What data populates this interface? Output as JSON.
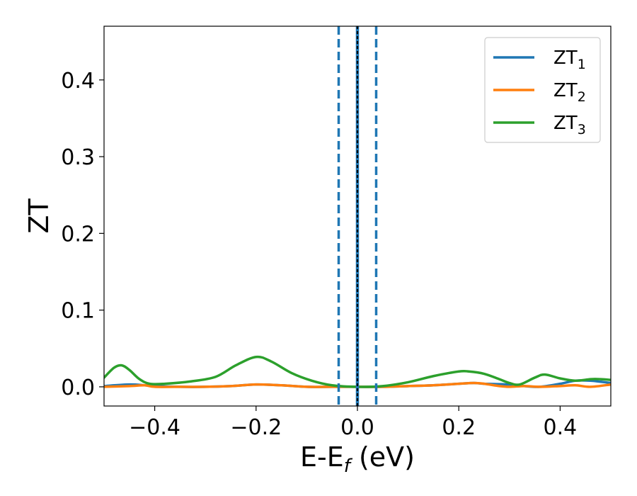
{
  "chart_data": {
    "type": "line",
    "xlabel": "E-E_f (eV)",
    "xlabel_main": "E-E",
    "xlabel_sub": "f",
    "xlabel_unit": " (eV)",
    "ylabel": "ZT",
    "xlim": [
      -0.5,
      0.5
    ],
    "ylim": [
      -0.025,
      0.47
    ],
    "xticks": [
      -0.4,
      -0.2,
      0.0,
      0.2,
      0.4
    ],
    "xtick_labels": [
      "−0.4",
      "−0.2",
      "0.0",
      "0.2",
      "0.4"
    ],
    "yticks": [
      0.0,
      0.1,
      0.2,
      0.3,
      0.4
    ],
    "ytick_labels": [
      "0.0",
      "0.1",
      "0.2",
      "0.3",
      "0.4"
    ],
    "grid": false,
    "legend_position": "top-right",
    "vlines": [
      {
        "x": -0.037,
        "style": "dashed",
        "color": "#1f77b4"
      },
      {
        "x": 0.0,
        "style": "solid",
        "color": "#1f77b4"
      },
      {
        "x": 0.0,
        "style": "dotted",
        "color": "#000000"
      },
      {
        "x": 0.037,
        "style": "dashed",
        "color": "#1f77b4"
      }
    ],
    "series": [
      {
        "name": "ZT",
        "sub": "1",
        "color": "#1f77b4",
        "x": [
          -0.5,
          -0.45,
          -0.42,
          -0.4,
          -0.35,
          -0.3,
          -0.25,
          -0.2,
          -0.15,
          -0.1,
          -0.05,
          0.0,
          0.05,
          0.1,
          0.15,
          0.2,
          0.23,
          0.25,
          0.3,
          0.33,
          0.36,
          0.4,
          0.43,
          0.46,
          0.5
        ],
        "y": [
          0.001,
          0.003,
          0.002,
          0.001,
          0.0,
          0.0,
          0.001,
          0.003,
          0.002,
          0.0,
          0.0,
          0.0,
          0.0,
          0.001,
          0.002,
          0.004,
          0.005,
          0.004,
          0.003,
          0.001,
          0.0,
          0.004,
          0.008,
          0.008,
          0.005
        ]
      },
      {
        "name": "ZT",
        "sub": "2",
        "color": "#ff7f0e",
        "x": [
          -0.5,
          -0.45,
          -0.42,
          -0.4,
          -0.35,
          -0.3,
          -0.25,
          -0.2,
          -0.15,
          -0.1,
          -0.05,
          0.0,
          0.05,
          0.1,
          0.15,
          0.2,
          0.23,
          0.25,
          0.28,
          0.3,
          0.33,
          0.36,
          0.4,
          0.43,
          0.46,
          0.5
        ],
        "y": [
          0.0,
          0.001,
          0.002,
          0.0,
          0.0,
          0.0,
          0.001,
          0.003,
          0.002,
          0.0,
          0.0,
          0.0,
          0.0,
          0.001,
          0.002,
          0.004,
          0.005,
          0.004,
          0.001,
          0.0,
          0.001,
          0.0,
          0.001,
          0.002,
          0.0,
          0.003
        ]
      },
      {
        "name": "ZT",
        "sub": "3",
        "color": "#2ca02c",
        "x": [
          -0.5,
          -0.48,
          -0.465,
          -0.45,
          -0.43,
          -0.41,
          -0.38,
          -0.33,
          -0.28,
          -0.24,
          -0.2,
          -0.17,
          -0.13,
          -0.09,
          -0.05,
          0.0,
          0.05,
          0.1,
          0.15,
          0.2,
          0.22,
          0.25,
          0.28,
          0.3,
          0.32,
          0.35,
          0.37,
          0.4,
          0.43,
          0.46,
          0.48,
          0.5
        ],
        "y": [
          0.012,
          0.025,
          0.028,
          0.022,
          0.01,
          0.004,
          0.004,
          0.007,
          0.013,
          0.028,
          0.039,
          0.033,
          0.018,
          0.008,
          0.002,
          0.0,
          0.001,
          0.006,
          0.014,
          0.02,
          0.02,
          0.017,
          0.01,
          0.005,
          0.003,
          0.012,
          0.016,
          0.011,
          0.008,
          0.01,
          0.01,
          0.009
        ]
      }
    ]
  }
}
